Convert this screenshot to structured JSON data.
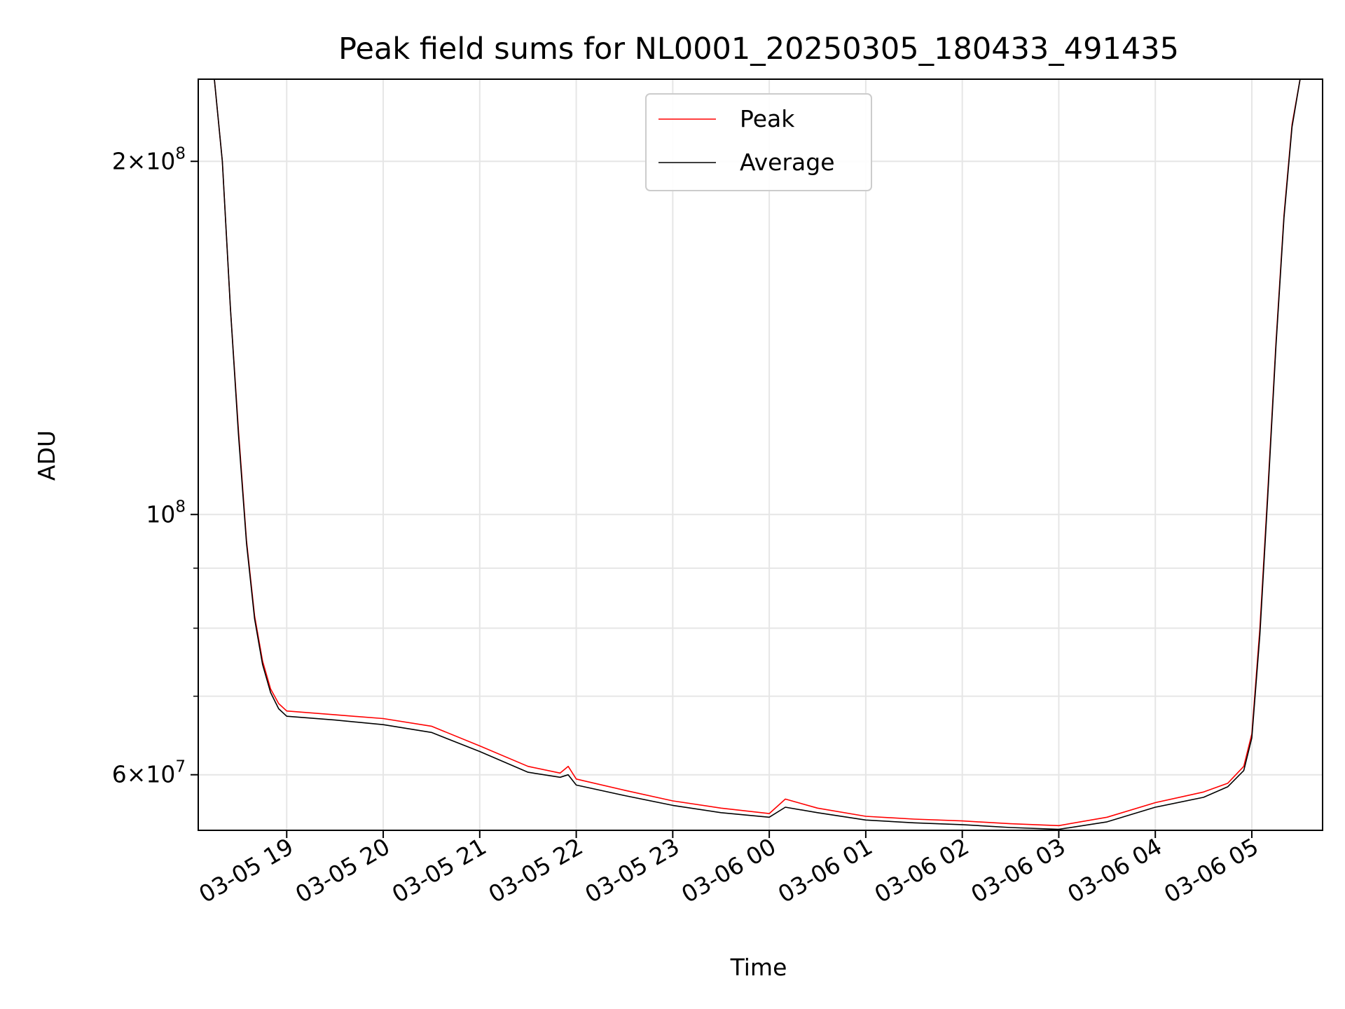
{
  "chart_data": {
    "type": "line",
    "title": "Peak field sums for NL0001_20250305_180433_491435",
    "xlabel": "Time",
    "ylabel": "ADU",
    "yscale": "log",
    "grid": true,
    "legend_position": "top-center",
    "xlim": [
      "2025-03-05 18:05",
      "2025-03-06 05:44"
    ],
    "ylim": [
      53800000,
      235000000
    ],
    "x_ticks": [
      "03-05 19",
      "03-05 20",
      "03-05 21",
      "03-05 22",
      "03-05 23",
      "03-06 00",
      "03-06 01",
      "03-06 02",
      "03-06 03",
      "03-06 04",
      "03-06 05"
    ],
    "y_ticks": [
      {
        "value": 200000000,
        "mant": "2",
        "exp": "8"
      },
      {
        "value": 100000000,
        "mant": "",
        "exp": "8"
      },
      {
        "value": 60000000,
        "mant": "6",
        "exp": "7"
      }
    ],
    "x": [
      "2025-03-05 18:15",
      "2025-03-05 18:20",
      "2025-03-05 18:25",
      "2025-03-05 18:30",
      "2025-03-05 18:35",
      "2025-03-05 18:40",
      "2025-03-05 18:45",
      "2025-03-05 18:50",
      "2025-03-05 18:55",
      "2025-03-05 19:00",
      "2025-03-05 19:30",
      "2025-03-05 20:00",
      "2025-03-05 20:30",
      "2025-03-05 21:00",
      "2025-03-05 21:30",
      "2025-03-05 21:50",
      "2025-03-05 21:55",
      "2025-03-05 22:00",
      "2025-03-05 22:30",
      "2025-03-05 23:00",
      "2025-03-05 23:30",
      "2025-03-06 00:00",
      "2025-03-06 00:10",
      "2025-03-06 00:30",
      "2025-03-06 01:00",
      "2025-03-06 01:30",
      "2025-03-06 02:00",
      "2025-03-06 02:30",
      "2025-03-06 03:00",
      "2025-03-06 03:30",
      "2025-03-06 04:00",
      "2025-03-06 04:30",
      "2025-03-06 04:45",
      "2025-03-06 04:55",
      "2025-03-06 05:00",
      "2025-03-06 05:05",
      "2025-03-06 05:10",
      "2025-03-06 05:15",
      "2025-03-06 05:20",
      "2025-03-06 05:25",
      "2025-03-06 05:30",
      "2025-03-06 05:35"
    ],
    "series": [
      {
        "name": "Peak",
        "color": "#ff0000",
        "values": [
          235000000,
          200000000,
          150000000,
          118000000,
          95000000,
          82000000,
          75000000,
          71000000,
          69000000,
          68000000,
          67500000,
          67000000,
          66000000,
          63500000,
          61000000,
          60200000,
          61000000,
          59500000,
          58200000,
          57000000,
          56200000,
          55600000,
          57200000,
          56200000,
          55300000,
          55000000,
          54800000,
          54500000,
          54300000,
          55200000,
          56800000,
          58000000,
          59000000,
          61000000,
          65000000,
          80000000,
          105000000,
          140000000,
          180000000,
          215000000,
          235000000,
          235000000
        ]
      },
      {
        "name": "Average",
        "color": "#000000",
        "values": [
          235000000,
          200000000,
          150000000,
          117000000,
          94500000,
          81500000,
          74500000,
          70500000,
          68300000,
          67300000,
          66800000,
          66200000,
          65200000,
          62800000,
          60300000,
          59700000,
          60000000,
          58800000,
          57600000,
          56500000,
          55700000,
          55200000,
          56300000,
          55700000,
          54900000,
          54600000,
          54400000,
          54100000,
          53900000,
          54700000,
          56300000,
          57400000,
          58600000,
          60500000,
          64500000,
          79000000,
          104000000,
          139000000,
          179000000,
          214000000,
          235000000,
          235000000
        ]
      }
    ]
  }
}
